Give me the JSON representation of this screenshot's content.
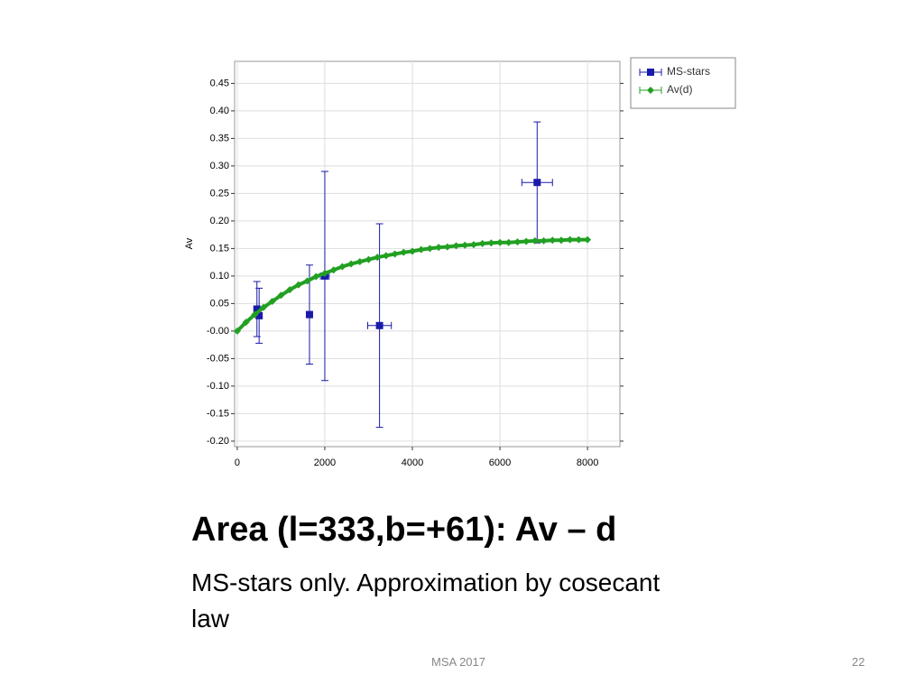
{
  "slide": {
    "title": "Area (l=333,b=+61): Av – d",
    "body": "MS-stars only. Approximation by cosecant law",
    "footer": "MSA 2017",
    "page_number": "22"
  },
  "chart_data": {
    "type": "scatter",
    "ylabel": "Av",
    "xlim": [
      -60,
      8740
    ],
    "ylim": [
      -0.21,
      0.49
    ],
    "xticks": [
      0,
      2000,
      4000,
      6000,
      8000
    ],
    "yticks": [
      0.45,
      {
        "value": 0.4,
        "label": "0.40"
      },
      0.35,
      {
        "value": 0.3,
        "label": "0.30"
      },
      0.25,
      {
        "value": 0.2,
        "label": "0.20"
      },
      0.15,
      {
        "value": 0.1,
        "label": "0.10"
      },
      0.05,
      {
        "value": 0,
        "label": "-0.00"
      },
      -0.05,
      {
        "value": -0.1,
        "label": "-0.10"
      },
      -0.15,
      {
        "value": -0.2,
        "label": "-0.20"
      }
    ],
    "grid": true,
    "legend": "upper right",
    "series": [
      {
        "name": "MS-stars",
        "color": "#1a1aaa",
        "marker": "square",
        "x": [
          450,
          500,
          1650,
          2000,
          3250,
          6850
        ],
        "values": [
          0.04,
          0.028,
          0.03,
          0.1,
          0.01,
          0.27
        ],
        "yerr": [
          0.05,
          0.05,
          0.09,
          0.19,
          0.185,
          0.11
        ],
        "xerr": [
          50,
          50,
          50,
          100,
          270,
          350
        ]
      },
      {
        "name": "Av(d)",
        "color": "#22a022",
        "marker": "diamond",
        "x": [
          0,
          200,
          400,
          600,
          800,
          1000,
          1200,
          1400,
          1600,
          1800,
          2000,
          2200,
          2400,
          2600,
          2800,
          3000,
          3200,
          3400,
          3600,
          3800,
          4000,
          4200,
          4400,
          4600,
          4800,
          5000,
          5200,
          5400,
          5600,
          5800,
          6000,
          6200,
          6400,
          6600,
          6800,
          7000,
          7200,
          7400,
          7600,
          7800,
          8000
        ],
        "values": [
          0,
          0.016,
          0.03,
          0.043,
          0.054,
          0.065,
          0.075,
          0.084,
          0.091,
          0.099,
          0.105,
          0.111,
          0.117,
          0.122,
          0.126,
          0.13,
          0.134,
          0.137,
          0.14,
          0.143,
          0.145,
          0.148,
          0.15,
          0.152,
          0.153,
          0.155,
          0.156,
          0.157,
          0.159,
          0.16,
          0.161,
          0.161,
          0.162,
          0.163,
          0.164,
          0.164,
          0.165,
          0.165,
          0.166,
          0.166,
          0.166
        ]
      }
    ]
  }
}
